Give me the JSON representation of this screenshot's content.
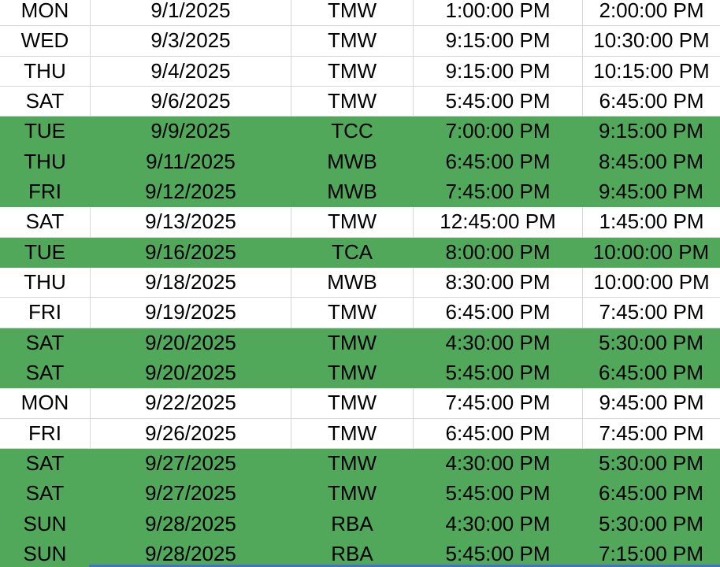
{
  "table": {
    "column_keys": [
      "day",
      "date",
      "location",
      "start",
      "end"
    ],
    "rows": [
      {
        "day": "MON",
        "date": "9/1/2025",
        "location": "TMW",
        "start": "1:00:00 PM",
        "end": "2:00:00 PM",
        "highlight": false
      },
      {
        "day": "WED",
        "date": "9/3/2025",
        "location": "TMW",
        "start": "9:15:00 PM",
        "end": "10:30:00 PM",
        "highlight": false
      },
      {
        "day": "THU",
        "date": "9/4/2025",
        "location": "TMW",
        "start": "9:15:00 PM",
        "end": "10:15:00 PM",
        "highlight": false
      },
      {
        "day": "SAT",
        "date": "9/6/2025",
        "location": "TMW",
        "start": "5:45:00 PM",
        "end": "6:45:00 PM",
        "highlight": false
      },
      {
        "day": "TUE",
        "date": "9/9/2025",
        "location": "TCC",
        "start": "7:00:00 PM",
        "end": "9:15:00 PM",
        "highlight": true
      },
      {
        "day": "THU",
        "date": "9/11/2025",
        "location": "MWB",
        "start": "6:45:00 PM",
        "end": "8:45:00 PM",
        "highlight": true
      },
      {
        "day": "FRI",
        "date": "9/12/2025",
        "location": "MWB",
        "start": "7:45:00 PM",
        "end": "9:45:00 PM",
        "highlight": true
      },
      {
        "day": "SAT",
        "date": "9/13/2025",
        "location": "TMW",
        "start": "12:45:00 PM",
        "end": "1:45:00 PM",
        "highlight": false
      },
      {
        "day": "TUE",
        "date": "9/16/2025",
        "location": "TCA",
        "start": "8:00:00 PM",
        "end": "10:00:00 PM",
        "highlight": true
      },
      {
        "day": "THU",
        "date": "9/18/2025",
        "location": "MWB",
        "start": "8:30:00 PM",
        "end": "10:00:00 PM",
        "highlight": false
      },
      {
        "day": "FRI",
        "date": "9/19/2025",
        "location": "TMW",
        "start": "6:45:00 PM",
        "end": "7:45:00 PM",
        "highlight": false
      },
      {
        "day": "SAT",
        "date": "9/20/2025",
        "location": "TMW",
        "start": "4:30:00 PM",
        "end": "5:30:00 PM",
        "highlight": true
      },
      {
        "day": "SAT",
        "date": "9/20/2025",
        "location": "TMW",
        "start": "5:45:00 PM",
        "end": "6:45:00 PM",
        "highlight": true
      },
      {
        "day": "MON",
        "date": "9/22/2025",
        "location": "TMW",
        "start": "7:45:00 PM",
        "end": "9:45:00 PM",
        "highlight": false
      },
      {
        "day": "FRI",
        "date": "9/26/2025",
        "location": "TMW",
        "start": "6:45:00 PM",
        "end": "7:45:00 PM",
        "highlight": false
      },
      {
        "day": "SAT",
        "date": "9/27/2025",
        "location": "TMW",
        "start": "4:30:00 PM",
        "end": "5:30:00 PM",
        "highlight": true
      },
      {
        "day": "SAT",
        "date": "9/27/2025",
        "location": "TMW",
        "start": "5:45:00 PM",
        "end": "6:45:00 PM",
        "highlight": true
      },
      {
        "day": "SUN",
        "date": "9/28/2025",
        "location": "RBA",
        "start": "4:30:00 PM",
        "end": "5:30:00 PM",
        "highlight": true
      },
      {
        "day": "SUN",
        "date": "9/28/2025",
        "location": "RBA",
        "start": "5:45:00 PM",
        "end": "7:15:00 PM",
        "highlight": true
      }
    ]
  },
  "colors": {
    "highlight_green": "#52a85a",
    "row_white": "#ffffff",
    "gridline": "#d6d6d6",
    "text": "#000000",
    "bottom_line_blue": "#4472c4"
  }
}
